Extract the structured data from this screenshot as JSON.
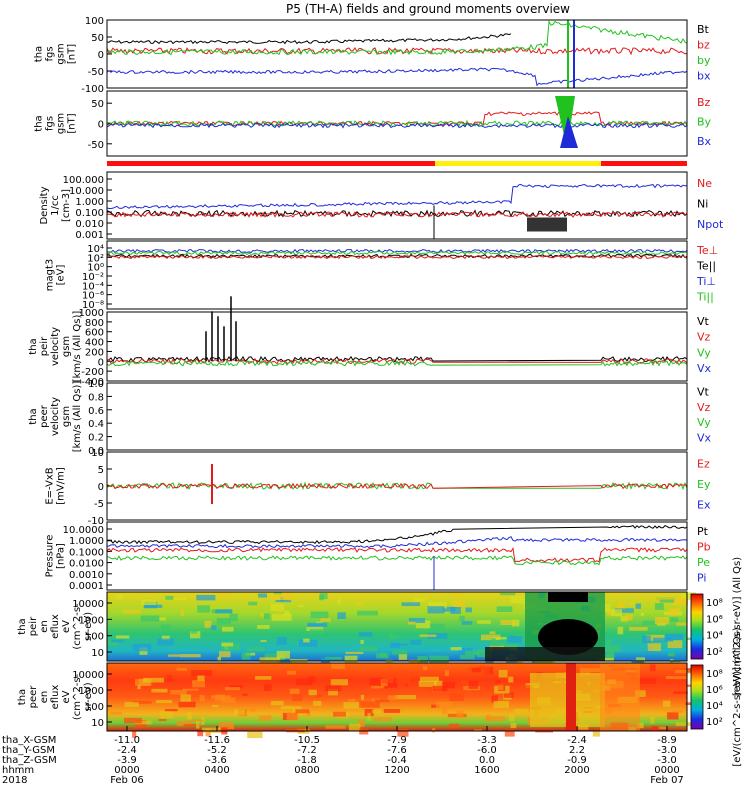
{
  "title": "P5 (TH-A) fields and ground moments overview",
  "year": "2018",
  "chart_data": [
    {
      "type": "line",
      "name": "fgs-gsm",
      "ylabel": [
        "tha",
        "fgs",
        "gsm",
        "[nT]"
      ],
      "ylim": [
        -100,
        100
      ],
      "yticks": [
        100,
        50,
        0,
        -50,
        -100
      ],
      "legend": [
        {
          "name": "Bt",
          "color": "#000000"
        },
        {
          "name": "bz",
          "color": "#e31a1c"
        },
        {
          "name": "by",
          "color": "#22c21e"
        },
        {
          "name": "bx",
          "color": "#1f2bd6"
        }
      ]
    },
    {
      "type": "line",
      "name": "fgs-gsm-zoom",
      "ylabel": [
        "tha",
        "fgs",
        "gsm",
        "[nT]"
      ],
      "ylim": [
        -80,
        80
      ],
      "yticks": [
        50,
        0,
        -50
      ],
      "legend": [
        {
          "name": "Bz",
          "color": "#e31a1c"
        },
        {
          "name": "By",
          "color": "#22c21e"
        },
        {
          "name": "Bx",
          "color": "#1f2bd6"
        }
      ]
    },
    {
      "type": "line",
      "name": "density",
      "ylabel": [
        "Density",
        "1/cc",
        "[cm-3]"
      ],
      "ylim": [
        0.001,
        1000
      ],
      "log": true,
      "yticks": [
        "100.000",
        "10.000",
        "1.000",
        "0.100",
        "0.010",
        "0.001"
      ],
      "legend": [
        {
          "name": "Ne",
          "color": "#e31a1c"
        },
        {
          "name": "Ni",
          "color": "#000000"
        },
        {
          "name": "Npot",
          "color": "#1f2bd6"
        }
      ]
    },
    {
      "type": "line",
      "name": "temperature",
      "ylabel": [
        "magt3",
        "[eV]"
      ],
      "log": true,
      "yticks": [
        "10⁴",
        "10²",
        "10⁰",
        "10⁻²",
        "10⁻⁴",
        "10⁻⁶",
        "10⁻⁸"
      ],
      "legend": [
        {
          "name": "Te⊥",
          "color": "#e31a1c"
        },
        {
          "name": "Te||",
          "color": "#000000"
        },
        {
          "name": "Ti⊥",
          "color": "#1f2bd6"
        },
        {
          "name": "Ti||",
          "color": "#22c21e"
        }
      ]
    },
    {
      "type": "line",
      "name": "peir-velocity",
      "ylabel": [
        "tha",
        "peir",
        "velocity",
        "gsm",
        "[km/s (All Qs)]"
      ],
      "ylim": [
        -400,
        1000
      ],
      "yticks": [
        1000,
        800,
        600,
        400,
        200,
        0,
        -200,
        -400
      ],
      "legend": [
        {
          "name": "Vt",
          "color": "#000000"
        },
        {
          "name": "Vz",
          "color": "#e31a1c"
        },
        {
          "name": "Vy",
          "color": "#22c21e"
        },
        {
          "name": "Vx",
          "color": "#1f2bd6"
        }
      ]
    },
    {
      "type": "line",
      "name": "peer-velocity",
      "ylabel": [
        "tha",
        "peer",
        "velocity",
        "gsm",
        "[km/s (All Qs)]"
      ],
      "ylim": [
        0,
        1
      ],
      "yticks": [
        "1.0",
        "0.8",
        "0.6",
        "0.4",
        "0.2",
        "0.0"
      ],
      "legend": [
        {
          "name": "Vt",
          "color": "#000000"
        },
        {
          "name": "Vz",
          "color": "#e31a1c"
        },
        {
          "name": "Vy",
          "color": "#22c21e"
        },
        {
          "name": "Vx",
          "color": "#1f2bd6"
        }
      ]
    },
    {
      "type": "line",
      "name": "efield",
      "ylabel": [
        "E=-VxB",
        "[mV/m]"
      ],
      "ylim": [
        -10,
        10
      ],
      "yticks": [
        10,
        5,
        0,
        -5,
        -10
      ],
      "legend": [
        {
          "name": "Ez",
          "color": "#e31a1c"
        },
        {
          "name": "Ey",
          "color": "#22c21e"
        },
        {
          "name": "Ex",
          "color": "#1f2bd6"
        }
      ]
    },
    {
      "type": "line",
      "name": "pressure",
      "ylabel": [
        "Pressure",
        "[nPa]"
      ],
      "log": true,
      "ylim": [
        0.0001,
        10
      ],
      "yticks": [
        "10.0000",
        "1.0000",
        "0.1000",
        "0.0100",
        "0.0010",
        "0.0001"
      ],
      "legend": [
        {
          "name": "Pt",
          "color": "#000000"
        },
        {
          "name": "Pb",
          "color": "#e31a1c"
        },
        {
          "name": "Pe",
          "color": "#22c21e"
        },
        {
          "name": "Pi",
          "color": "#1f2bd6"
        }
      ]
    },
    {
      "type": "heatmap",
      "name": "peir-eflux",
      "ylabel": [
        "tha",
        "peir",
        "en",
        "eflux",
        "eV",
        "(cm^2-s-",
        "sr-eV)"
      ],
      "yticks": [
        "10000",
        "1000",
        "100",
        "10"
      ],
      "colorbar_label": "[eV/(cm^2-s-sr-eV)] (All Qs)",
      "colorbar_ticks": [
        "10⁸",
        "10⁶",
        "10⁴",
        "10²"
      ]
    },
    {
      "type": "heatmap",
      "name": "peer-eflux",
      "ylabel": [
        "tha",
        "peer",
        "en",
        "eflux",
        "eV",
        "(cm^2-s-",
        "sr-eV)"
      ],
      "yticks": [
        "10000",
        "1000",
        "100",
        "10"
      ],
      "colorbar_label": "[eV/(cm^2-s-sr-eV)] (All Qs)",
      "colorbar_ticks": [
        "10⁸",
        "10⁶",
        "10⁴",
        "10²"
      ]
    }
  ],
  "x_axis": {
    "row_labels": [
      "tha_X-GSM",
      "tha_Y-GSM",
      "tha_Z-GSM",
      "hhmm"
    ],
    "columns": [
      {
        "X": "-11.0",
        "Y": "-2.4",
        "Z": "-3.9",
        "hhmm": "0000",
        "date": "Feb 06"
      },
      {
        "X": "-11.6",
        "Y": "-5.2",
        "Z": "-3.6",
        "hhmm": "0400",
        "date": ""
      },
      {
        "X": "-10.5",
        "Y": "-7.2",
        "Z": "-1.8",
        "hhmm": "0800",
        "date": ""
      },
      {
        "X": "-7.9",
        "Y": "-7.6",
        "Z": "-0.4",
        "hhmm": "1200",
        "date": ""
      },
      {
        "X": "-3.3",
        "Y": "-6.0",
        "Z": "0.0",
        "hhmm": "1600",
        "date": ""
      },
      {
        "X": "-2.4",
        "Y": "2.2",
        "Z": "-0.9",
        "hhmm": "2000",
        "date": ""
      },
      {
        "X": "-8.9",
        "Y": "-3.0",
        "Z": "-3.0",
        "hhmm": "0000",
        "date": "Feb 07"
      }
    ]
  }
}
